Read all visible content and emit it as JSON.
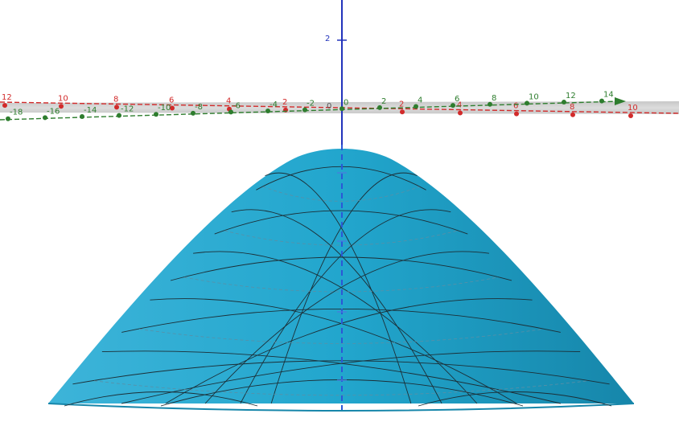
{
  "view": {
    "colors": {
      "background": "#ffffff",
      "surface": "#1fa3c9",
      "surface_dark": "#1789ad",
      "mesh": "#20313a",
      "x_axis": "#d22b2b",
      "y_axis": "#2e7d2e",
      "z_axis": "#2233bb",
      "plane": "#c9c9c9"
    },
    "z_axis_label": "2",
    "origin_label": "0",
    "x_axis_labels": [
      "12",
      "10",
      "8",
      "6",
      "4",
      "2",
      "2",
      "4",
      "6",
      "8",
      "10"
    ],
    "y_axis_labels": [
      "-18",
      "-16",
      "-14",
      "-12",
      "-10",
      "-8",
      "-6",
      "-4",
      "-2",
      "0",
      "2",
      "4",
      "6",
      "8",
      "10",
      "12",
      "14"
    ],
    "icons": {
      "x_axis_arrow": "arrowhead-icon",
      "y_axis_arrow": "arrowhead-icon"
    }
  }
}
